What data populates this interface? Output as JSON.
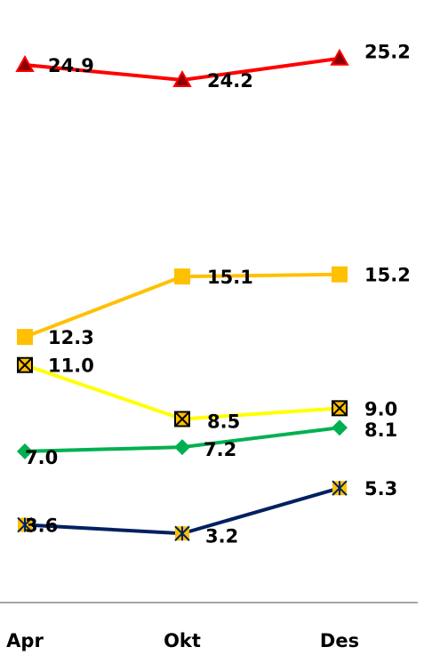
{
  "chart_data": {
    "type": "line",
    "categories": [
      "Apr",
      "Okt",
      "Des"
    ],
    "ylim": [
      0,
      27
    ],
    "grid": false,
    "series": [
      {
        "values": [
          24.9,
          24.2,
          25.2
        ],
        "color": "#ff0000",
        "marker": "triangle",
        "marker_fill": "#8b0000",
        "labels": [
          "24.9",
          "24.2",
          "25.2"
        ]
      },
      {
        "values": [
          12.3,
          15.1,
          15.2
        ],
        "color": "#ffc000",
        "marker": "square",
        "marker_fill": "#ffc000",
        "labels": [
          "12.3",
          "15.1",
          "15.2"
        ]
      },
      {
        "values": [
          11.0,
          8.5,
          9.0
        ],
        "color": "#ffff00",
        "marker": "x-square",
        "marker_fill": "#ffc000",
        "labels": [
          "11.0",
          "8.5",
          "9.0"
        ]
      },
      {
        "values": [
          7.0,
          7.2,
          8.1
        ],
        "color": "#00b050",
        "marker": "diamond",
        "marker_fill": "#00b050",
        "labels": [
          "7.0",
          "7.2",
          "8.1"
        ]
      },
      {
        "values": [
          3.6,
          3.2,
          5.3
        ],
        "color": "#002060",
        "marker": "asterisk",
        "marker_fill": "#ffc000",
        "labels": [
          "3.6",
          "3.2",
          "5.3"
        ]
      }
    ]
  }
}
